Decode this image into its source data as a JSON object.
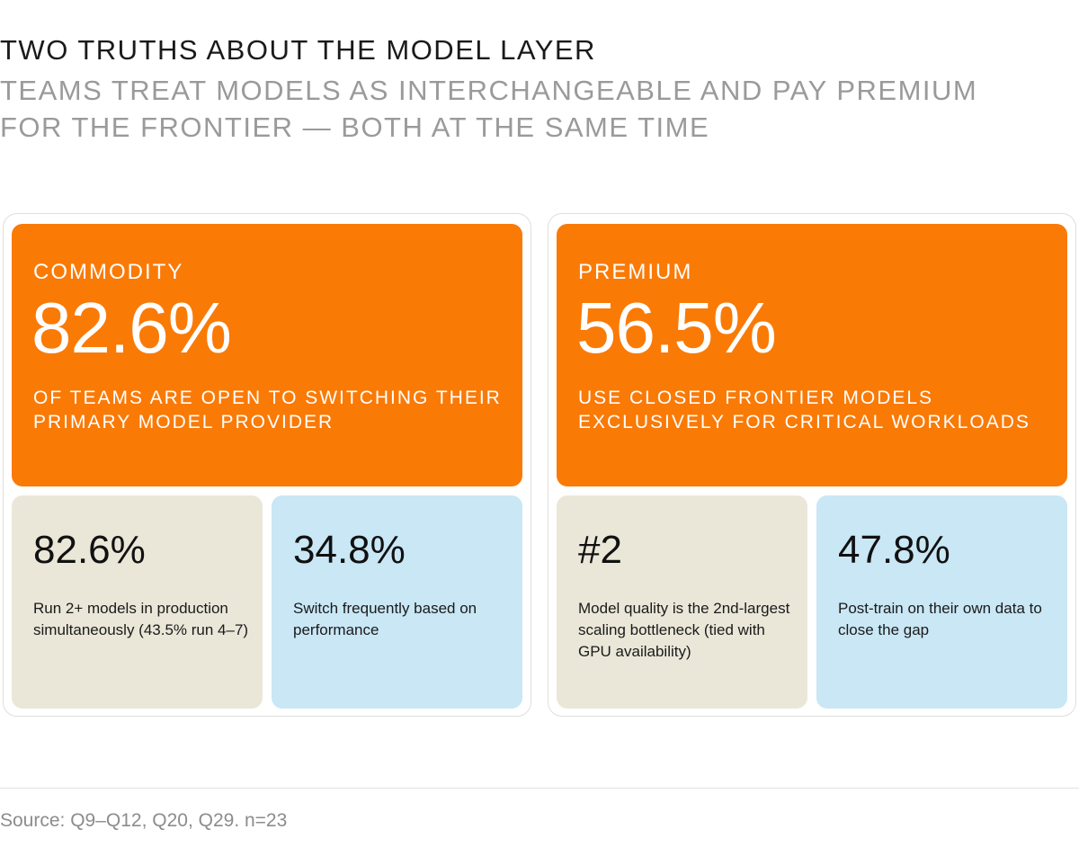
{
  "header": {
    "title": "TWO TRUTHS ABOUT THE MODEL LAYER",
    "subtitle": "TEAMS TREAT MODELS AS INTERCHANGEABLE AND PAY PREMIUM FOR THE FRONTIER — BOTH AT THE SAME TIME"
  },
  "panels": [
    {
      "label": "COMMODITY",
      "value": "82.6%",
      "description": "OF TEAMS ARE OPEN TO SWITCHING THEIR PRIMARY MODEL PROVIDER",
      "cards": [
        {
          "value": "82.6%",
          "description": "Run 2+ models in production simultaneously (43.5% run 4–7)"
        },
        {
          "value": "34.8%",
          "description": "Switch frequently based on performance"
        }
      ]
    },
    {
      "label": "PREMIUM",
      "value": "56.5%",
      "description": "USE CLOSED FRONTIER MODELS EXCLUSIVELY FOR CRITICAL WORKLOADS",
      "cards": [
        {
          "value": "#2",
          "description": "Model quality is the 2nd-largest scaling bottleneck (tied with GPU availability)"
        },
        {
          "value": "47.8%",
          "description": "Post-train on their own data to close the gap"
        }
      ]
    }
  ],
  "footer": {
    "source": "Source: Q9–Q12, Q20, Q29. n=23"
  },
  "colors": {
    "hero": "#fa7a06",
    "card_beige": "#eae7d9",
    "card_blue": "#c9e7f5",
    "subtitle_gray": "#9a9a9a"
  }
}
